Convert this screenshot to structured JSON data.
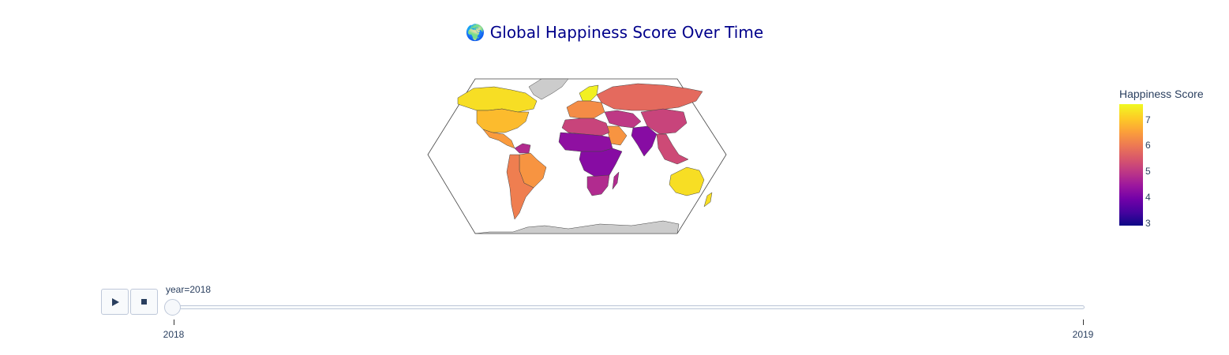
{
  "title": {
    "icon": "globe-emoji",
    "icon_char": "🌍",
    "text": "Global Happiness Score Over Time"
  },
  "map": {
    "projection": "robinson-like",
    "colorscale": "plasma",
    "no_data_color": "#cccccc",
    "ocean_color": "#ffffff",
    "regions": [
      {
        "name": "Canada",
        "value": 7.3
      },
      {
        "name": "USA",
        "value": 6.9
      },
      {
        "name": "Mexico",
        "value": 6.5
      },
      {
        "name": "Brazil",
        "value": 6.4
      },
      {
        "name": "Southern South America",
        "value": 6.1
      },
      {
        "name": "Venezuela",
        "value": 4.8
      },
      {
        "name": "Europe",
        "value": 6.3
      },
      {
        "name": "Nordics",
        "value": 7.5
      },
      {
        "name": "Russia",
        "value": 5.8
      },
      {
        "name": "China",
        "value": 5.2
      },
      {
        "name": "India",
        "value": 4.2
      },
      {
        "name": "Middle East",
        "value": 5.0
      },
      {
        "name": "Saudi Arabia",
        "value": 6.4
      },
      {
        "name": "North Africa",
        "value": 5.2
      },
      {
        "name": "Sahel",
        "value": 4.3
      },
      {
        "name": "Central Africa",
        "value": 4.2
      },
      {
        "name": "Southern Africa",
        "value": 4.8
      },
      {
        "name": "Southeast Asia",
        "value": 5.3
      },
      {
        "name": "Australia",
        "value": 7.3
      },
      {
        "name": "New Zealand",
        "value": 7.3
      }
    ]
  },
  "colorbar": {
    "title": "Happiness Score",
    "min": 2.9,
    "max": 7.6,
    "ticks": [
      3,
      4,
      5,
      6,
      7
    ],
    "tick_labels": [
      "3",
      "4",
      "5",
      "6",
      "7"
    ]
  },
  "slider": {
    "current_prefix": "year=",
    "current_value": "2018",
    "current_label": "year=2018",
    "steps": [
      "2018",
      "2019"
    ],
    "buttons": [
      "play",
      "stop"
    ]
  }
}
